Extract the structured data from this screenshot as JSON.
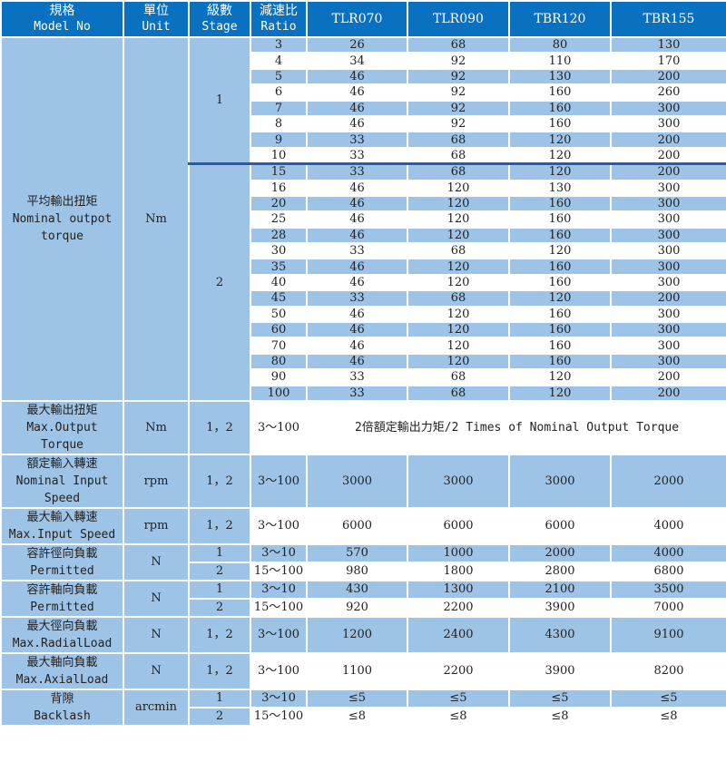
{
  "header": {
    "spec": [
      "規格",
      "Model No"
    ],
    "unit": [
      "單位",
      "Unit"
    ],
    "stage": [
      "級數",
      "Stage"
    ],
    "ratio": [
      "減速比",
      "Ratio"
    ],
    "models": [
      "TLR070",
      "TLR090",
      "TBR120",
      "TBR155"
    ]
  },
  "torque": {
    "label": [
      "平均輸出扭矩",
      "Nominal outpot",
      "torque"
    ],
    "unit": "Nm",
    "stage1": "1",
    "stage2": "2",
    "stage1_rows": [
      [
        "3",
        "26",
        "68",
        "80",
        "130"
      ],
      [
        "4",
        "34",
        "92",
        "110",
        "170"
      ],
      [
        "5",
        "46",
        "92",
        "130",
        "200"
      ],
      [
        "6",
        "46",
        "92",
        "160",
        "260"
      ],
      [
        "7",
        "46",
        "92",
        "160",
        "300"
      ],
      [
        "8",
        "46",
        "92",
        "160",
        "300"
      ],
      [
        "9",
        "33",
        "68",
        "120",
        "200"
      ],
      [
        "10",
        "33",
        "68",
        "120",
        "200"
      ]
    ],
    "stage2_rows": [
      [
        "15",
        "33",
        "68",
        "120",
        "200"
      ],
      [
        "16",
        "46",
        "120",
        "130",
        "300"
      ],
      [
        "20",
        "46",
        "120",
        "160",
        "300"
      ],
      [
        "25",
        "46",
        "120",
        "160",
        "300"
      ],
      [
        "28",
        "46",
        "120",
        "160",
        "300"
      ],
      [
        "30",
        "33",
        "68",
        "120",
        "300"
      ],
      [
        "35",
        "46",
        "120",
        "160",
        "300"
      ],
      [
        "40",
        "46",
        "120",
        "160",
        "300"
      ],
      [
        "45",
        "33",
        "68",
        "120",
        "200"
      ],
      [
        "50",
        "46",
        "120",
        "160",
        "300"
      ],
      [
        "60",
        "46",
        "120",
        "160",
        "300"
      ],
      [
        "70",
        "46",
        "120",
        "160",
        "300"
      ],
      [
        "80",
        "46",
        "120",
        "160",
        "300"
      ],
      [
        "90",
        "33",
        "68",
        "120",
        "200"
      ],
      [
        "100",
        "33",
        "68",
        "120",
        "200"
      ]
    ]
  },
  "max_output": {
    "label": [
      "最大輸出扭矩",
      "Max.Output",
      "Torque"
    ],
    "unit": "Nm",
    "stage": "1，2",
    "ratio": "3～100",
    "note": "2倍額定輸出力矩/2 Times of Nominal Output Torque"
  },
  "single_rows": [
    {
      "key": "nominal_input",
      "label": [
        "額定輸入轉速",
        "Nominal Input",
        "Speed"
      ],
      "unit": "rpm",
      "stage": "1，2",
      "ratio": "3～100",
      "values": [
        "3000",
        "3000",
        "3000",
        "2000"
      ],
      "tall": true,
      "color": "b"
    },
    {
      "key": "max_input",
      "label": [
        "最大輸入轉速",
        "Max.Input Speed"
      ],
      "unit": "rpm",
      "stage": "1，2",
      "ratio": "3～100",
      "values": [
        "6000",
        "6000",
        "6000",
        "4000"
      ],
      "color": "w"
    }
  ],
  "split_rows_a": [
    {
      "key": "radial",
      "label": [
        "容許徑向負載",
        "Permitted"
      ],
      "unit": "N",
      "rows": [
        {
          "stage": "1",
          "ratio": "3～10",
          "values": [
            "570",
            "1000",
            "2000",
            "4000"
          ]
        },
        {
          "stage": "2",
          "ratio": "15～100",
          "values": [
            "980",
            "1800",
            "2800",
            "6800"
          ]
        }
      ]
    },
    {
      "key": "axial",
      "label": [
        "容許軸向負載",
        "Permitted"
      ],
      "unit": "N",
      "rows": [
        {
          "stage": "1",
          "ratio": "3～10",
          "values": [
            "430",
            "1300",
            "2100",
            "3500"
          ]
        },
        {
          "stage": "2",
          "ratio": "15～100",
          "values": [
            "920",
            "2200",
            "3900",
            "7000"
          ]
        }
      ]
    }
  ],
  "single_rows_b": [
    {
      "key": "max_radial",
      "label": [
        "最大徑向負載",
        "Max.RadialLoad"
      ],
      "unit": "N",
      "stage": "1，2",
      "ratio": "3～100",
      "values": [
        "1200",
        "2400",
        "4300",
        "9100"
      ],
      "color": "b"
    },
    {
      "key": "max_axial",
      "label": [
        "最大軸向負載",
        "Max.AxialLoad"
      ],
      "unit": "N",
      "stage": "1，2",
      "ratio": "3～100",
      "values": [
        "1100",
        "2200",
        "3900",
        "8200"
      ],
      "color": "w"
    }
  ],
  "split_rows_b": [
    {
      "key": "backlash",
      "label": [
        "背隙",
        "Backlash"
      ],
      "unit": "arcmin",
      "rows": [
        {
          "stage": "1",
          "ratio": "3～10",
          "values": [
            "≤5",
            "≤5",
            "≤5",
            "≤5"
          ]
        },
        {
          "stage": "2",
          "ratio": "15～100",
          "values": [
            "≤8",
            "≤8",
            "≤8",
            "≤8"
          ]
        }
      ]
    }
  ],
  "colors": {
    "header": "#0a70c0",
    "row_blue": "#9dc3e6",
    "row_white": "#ffffff",
    "stage_divider": "#2b5aa8"
  }
}
